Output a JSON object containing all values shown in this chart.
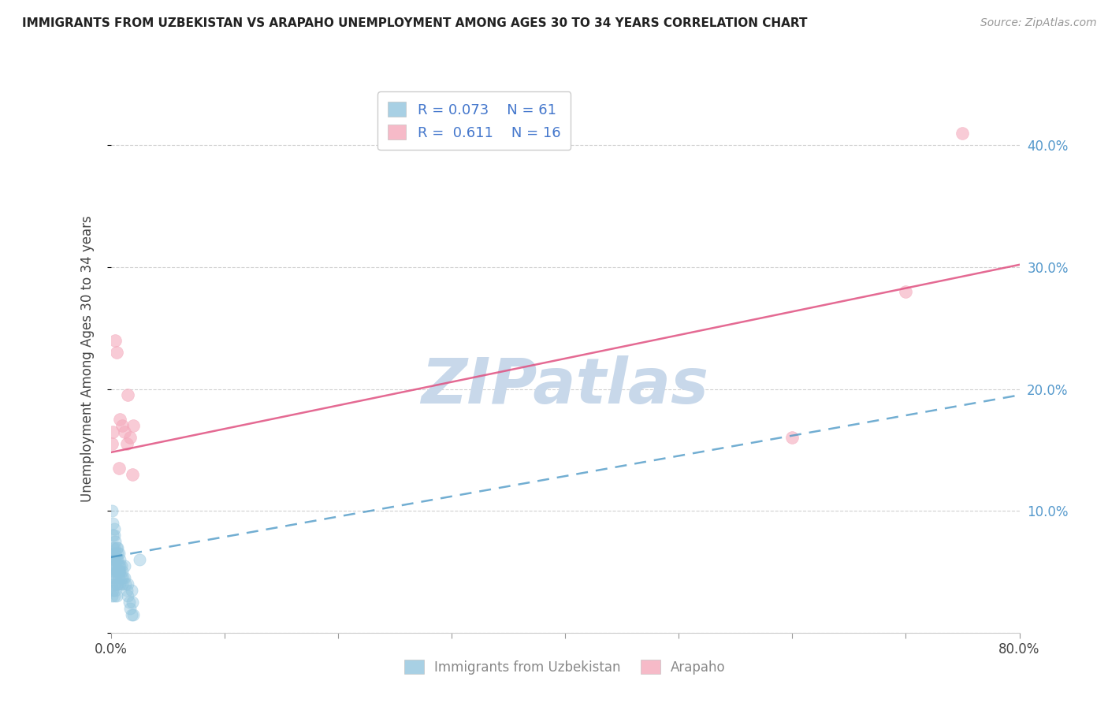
{
  "title": "IMMIGRANTS FROM UZBEKISTAN VS ARAPAHO UNEMPLOYMENT AMONG AGES 30 TO 34 YEARS CORRELATION CHART",
  "source": "Source: ZipAtlas.com",
  "ylabel": "Unemployment Among Ages 30 to 34 years",
  "xlim": [
    0,
    0.8
  ],
  "ylim": [
    0.0,
    0.45
  ],
  "xticks": [
    0.0,
    0.1,
    0.2,
    0.3,
    0.4,
    0.5,
    0.6,
    0.7,
    0.8
  ],
  "yticks": [
    0.0,
    0.1,
    0.2,
    0.3,
    0.4
  ],
  "ytick_labels_right": [
    "",
    "10.0%",
    "20.0%",
    "30.0%",
    "40.0%"
  ],
  "blue_color": "#92c5de",
  "pink_color": "#f4a9bb",
  "blue_edge_color": "#92c5de",
  "pink_edge_color": "#f4a9bb",
  "blue_line_color": "#4393c3",
  "pink_line_color": "#e05080",
  "legend_R_blue": "R = 0.073",
  "legend_N_blue": "N = 61",
  "legend_R_pink": "R =  0.611",
  "legend_N_pink": "N = 16",
  "watermark": "ZIPatlas",
  "watermark_color": "#c8d8ea",
  "background_color": "#ffffff",
  "grid_color": "#cccccc",
  "blue_scatter_x": [
    0.001,
    0.001,
    0.001,
    0.001,
    0.002,
    0.002,
    0.002,
    0.002,
    0.002,
    0.003,
    0.003,
    0.003,
    0.003,
    0.003,
    0.003,
    0.004,
    0.004,
    0.004,
    0.004,
    0.005,
    0.005,
    0.005,
    0.005,
    0.006,
    0.006,
    0.006,
    0.006,
    0.007,
    0.007,
    0.007,
    0.008,
    0.008,
    0.008,
    0.009,
    0.009,
    0.01,
    0.01,
    0.011,
    0.012,
    0.012,
    0.013,
    0.014,
    0.015,
    0.015,
    0.016,
    0.017,
    0.018,
    0.018,
    0.019,
    0.02,
    0.001,
    0.002,
    0.002,
    0.003,
    0.004,
    0.004,
    0.005,
    0.006,
    0.007,
    0.008,
    0.025
  ],
  "blue_scatter_y": [
    0.06,
    0.05,
    0.04,
    0.03,
    0.07,
    0.065,
    0.055,
    0.045,
    0.035,
    0.08,
    0.07,
    0.06,
    0.05,
    0.04,
    0.03,
    0.065,
    0.055,
    0.045,
    0.035,
    0.06,
    0.05,
    0.04,
    0.03,
    0.07,
    0.06,
    0.05,
    0.04,
    0.065,
    0.055,
    0.045,
    0.06,
    0.05,
    0.04,
    0.055,
    0.045,
    0.05,
    0.04,
    0.045,
    0.055,
    0.045,
    0.04,
    0.035,
    0.04,
    0.03,
    0.025,
    0.02,
    0.015,
    0.035,
    0.025,
    0.015,
    0.1,
    0.09,
    0.08,
    0.085,
    0.075,
    0.06,
    0.07,
    0.065,
    0.05,
    0.055,
    0.06
  ],
  "pink_scatter_x": [
    0.001,
    0.002,
    0.004,
    0.005,
    0.007,
    0.008,
    0.01,
    0.012,
    0.014,
    0.015,
    0.017,
    0.019,
    0.02,
    0.6,
    0.7,
    0.75
  ],
  "pink_scatter_y": [
    0.155,
    0.165,
    0.24,
    0.23,
    0.135,
    0.175,
    0.17,
    0.165,
    0.155,
    0.195,
    0.16,
    0.13,
    0.17,
    0.16,
    0.28,
    0.41
  ],
  "blue_trendline_x": [
    0.0,
    0.8
  ],
  "blue_trendline_y": [
    0.062,
    0.195
  ],
  "pink_trendline_x": [
    0.0,
    0.8
  ],
  "pink_trendline_y": [
    0.148,
    0.302
  ]
}
